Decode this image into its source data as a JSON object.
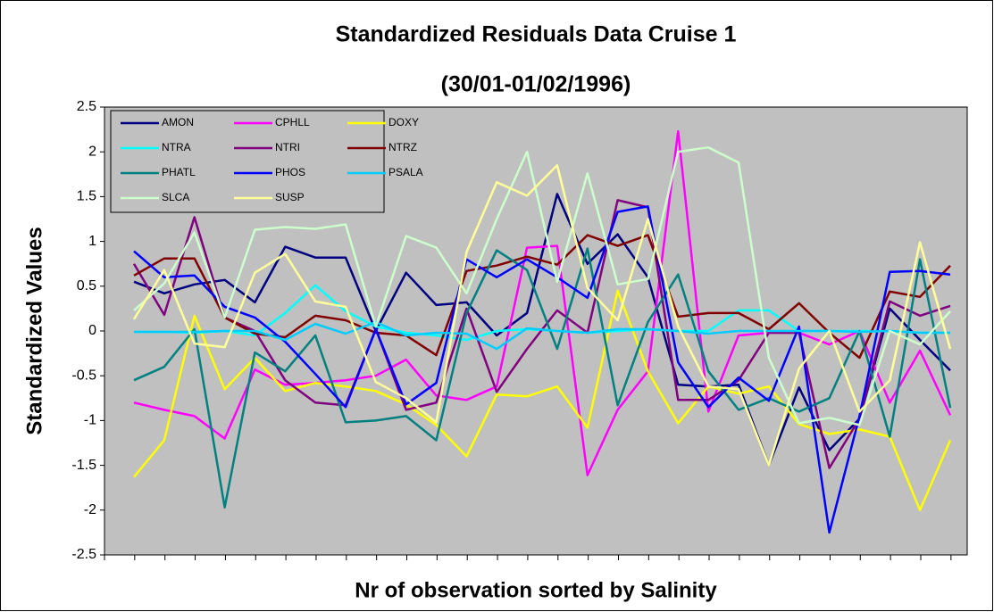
{
  "chart_data": {
    "type": "line",
    "title": [
      "Standardized Residuals Data Cruise 1",
      "(30/01-01/02/1996)"
    ],
    "xlabel": "Nr of observation sorted by Salinity",
    "ylabel": "Standardized Values",
    "categories": [
      null,
      null,
      null,
      null,
      null,
      null,
      null,
      null,
      null,
      null,
      null,
      null,
      null,
      null,
      null,
      null,
      null,
      null,
      null,
      null,
      null,
      null,
      null,
      null,
      null,
      null,
      null,
      null
    ],
    "ylim": [
      -2.5,
      2.5
    ],
    "yticks": [
      -2.5,
      -2,
      -1.5,
      -1,
      -0.5,
      0,
      0.5,
      1,
      1.5,
      2,
      2.5
    ],
    "grid": false,
    "legend": "upper left",
    "series": [
      {
        "name": "AMON",
        "color": "#000080",
        "values": [
          0.55,
          0.42,
          0.52,
          0.57,
          0.32,
          0.94,
          0.82,
          0.82,
          0.0,
          0.65,
          0.29,
          0.32,
          -0.05,
          0.2,
          1.53,
          0.75,
          1.08,
          0.6,
          -0.6,
          -0.62,
          -0.6,
          -1.5,
          -0.63,
          -1.33,
          -0.98,
          0.25,
          -0.1,
          -0.44
        ]
      },
      {
        "name": "CPHLL",
        "color": "#ff00ff",
        "values": [
          -0.8,
          -0.88,
          -0.95,
          -1.2,
          -0.43,
          -0.6,
          -0.58,
          -0.55,
          -0.5,
          -0.32,
          -0.72,
          -0.77,
          -0.62,
          0.93,
          0.95,
          -1.61,
          -0.88,
          -0.45,
          2.23,
          -0.9,
          -0.05,
          -0.02,
          -0.02,
          -0.15,
          0.0,
          -0.8,
          -0.22,
          -0.94
        ]
      },
      {
        "name": "DOXY",
        "color": "#ffff00",
        "values": [
          -1.63,
          -1.22,
          0.17,
          -0.65,
          -0.3,
          -0.67,
          -0.58,
          -0.62,
          -0.67,
          -0.82,
          -1.05,
          -1.4,
          -0.71,
          -0.73,
          -0.62,
          -1.08,
          0.45,
          -0.45,
          -1.03,
          -0.62,
          -0.7,
          -0.62,
          -1.04,
          -1.15,
          -1.1,
          -1.18,
          -2.0,
          -1.22
        ]
      },
      {
        "name": "NTRA",
        "color": "#00ffff",
        "values": [
          -0.01,
          -0.01,
          -0.02,
          0.0,
          -0.05,
          0.2,
          0.51,
          0.22,
          0.05,
          -0.02,
          -0.05,
          -0.1,
          0.0,
          0.02,
          0.0,
          -0.02,
          0.0,
          0.02,
          0.0,
          0.0,
          0.23,
          0.23,
          0.0,
          0.0,
          0.0,
          0.0,
          -0.02,
          -0.02
        ]
      },
      {
        "name": "NTRI",
        "color": "#800080",
        "values": [
          0.75,
          0.18,
          1.27,
          0.15,
          0.0,
          -0.55,
          -0.8,
          -0.83,
          0.02,
          -0.88,
          -0.8,
          0.25,
          -0.68,
          -0.2,
          0.23,
          -0.02,
          1.46,
          1.38,
          -0.77,
          -0.77,
          -0.55,
          -0.02,
          -0.02,
          -1.53,
          -0.98,
          0.33,
          0.17,
          0.28
        ]
      },
      {
        "name": "NTRZ",
        "color": "#800000",
        "values": [
          0.62,
          0.81,
          0.81,
          0.15,
          -0.03,
          -0.07,
          0.17,
          0.12,
          -0.02,
          -0.05,
          -0.27,
          0.67,
          0.73,
          0.83,
          0.74,
          1.07,
          0.95,
          1.07,
          0.16,
          0.2,
          0.2,
          0.02,
          0.31,
          -0.02,
          -0.3,
          0.44,
          0.38,
          0.73
        ]
      },
      {
        "name": "PHATL",
        "color": "#008080",
        "values": [
          -0.55,
          -0.4,
          0.02,
          -1.97,
          -0.24,
          -0.45,
          -0.05,
          -1.02,
          -1.0,
          -0.95,
          -1.22,
          0.2,
          0.9,
          0.68,
          -0.2,
          0.92,
          -0.83,
          0.1,
          0.63,
          -0.45,
          -0.88,
          -0.75,
          -0.9,
          -0.75,
          0.0,
          -1.18,
          0.8,
          -0.86
        ]
      },
      {
        "name": "PHOS",
        "color": "#0000ff",
        "values": [
          0.89,
          0.6,
          0.62,
          0.27,
          0.15,
          -0.12,
          -0.48,
          -0.85,
          0.02,
          -0.82,
          -0.58,
          0.8,
          0.6,
          0.8,
          0.6,
          0.37,
          1.33,
          1.39,
          -0.35,
          -0.85,
          -0.52,
          -0.78,
          0.05,
          -2.25,
          -0.95,
          0.66,
          0.67,
          0.63
        ]
      },
      {
        "name": "PSALA",
        "color": "#00ccff",
        "values": [
          -0.01,
          -0.01,
          -0.01,
          0.0,
          0.0,
          -0.1,
          0.08,
          -0.03,
          0.1,
          -0.05,
          -0.02,
          -0.03,
          -0.2,
          0.03,
          0.0,
          -0.02,
          0.02,
          0.02,
          0.0,
          -0.03,
          0.0,
          0.0,
          0.0,
          0.0,
          -0.01,
          0.0,
          -0.02,
          -0.02
        ]
      },
      {
        "name": "SLCA",
        "color": "#ccffcc",
        "values": [
          0.23,
          0.53,
          1.1,
          0.15,
          1.13,
          1.16,
          1.14,
          1.19,
          0.05,
          1.06,
          0.93,
          0.42,
          1.25,
          2.0,
          0.55,
          1.76,
          0.52,
          0.58,
          2.0,
          2.05,
          1.88,
          -0.3,
          -1.03,
          -0.97,
          -1.05,
          0.0,
          -0.15,
          0.22
        ]
      },
      {
        "name": "SUSP",
        "color": "#ffff99",
        "values": [
          0.13,
          0.68,
          -0.14,
          -0.18,
          0.65,
          0.86,
          0.33,
          0.27,
          -0.57,
          -0.75,
          -1.02,
          0.88,
          1.66,
          1.51,
          1.85,
          0.48,
          0.12,
          1.25,
          0.05,
          -0.62,
          -0.65,
          -1.5,
          -0.42,
          0.0,
          -0.9,
          -0.55,
          0.99,
          -0.2
        ]
      }
    ]
  }
}
